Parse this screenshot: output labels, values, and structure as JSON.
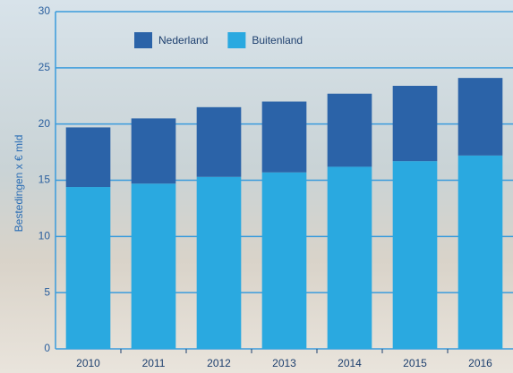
{
  "chart_data": {
    "type": "stacked-bar",
    "y_label": "Bestedingen x € mld",
    "categories": [
      "2010",
      "2011",
      "2012",
      "2013",
      "2014",
      "2015",
      "2016"
    ],
    "series": [
      {
        "name": "Nederland",
        "color": "#2b63a8",
        "values": [
          5.3,
          5.8,
          6.2,
          6.3,
          6.5,
          6.7,
          6.9
        ]
      },
      {
        "name": "Buitenland",
        "color": "#2aa9e0",
        "values": [
          14.4,
          14.7,
          15.3,
          15.7,
          16.2,
          16.7,
          17.2
        ]
      }
    ],
    "ylim": [
      0,
      30
    ],
    "yticks": [
      0,
      5,
      10,
      15,
      20,
      25,
      30
    ],
    "grid": true,
    "legend": "top"
  }
}
